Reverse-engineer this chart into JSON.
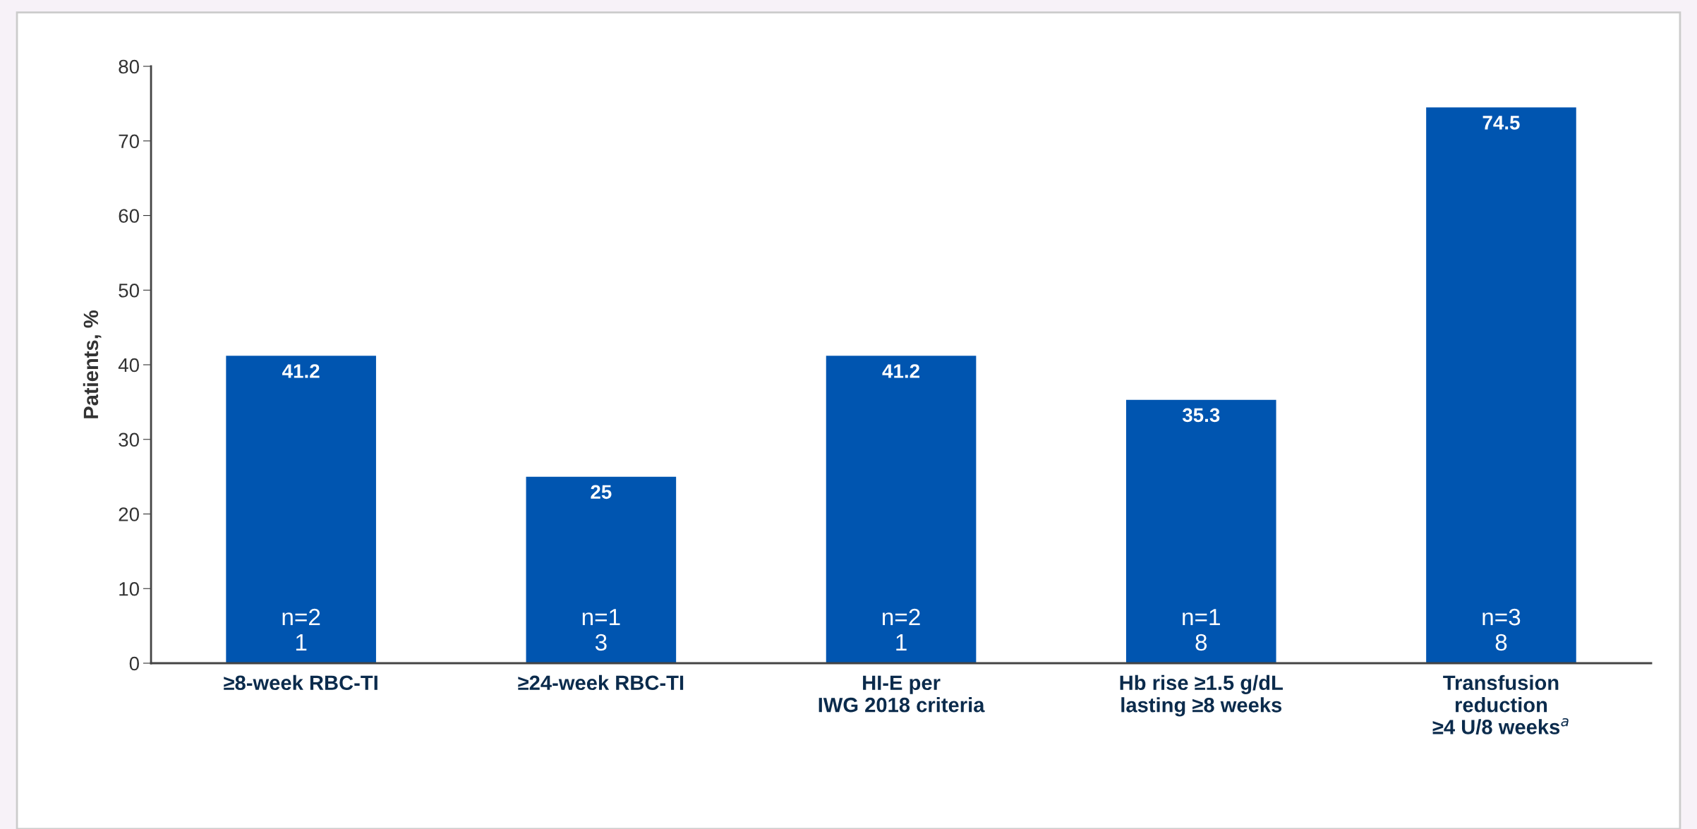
{
  "chart_data": {
    "type": "bar",
    "ylabel": "Patients, %",
    "categories": [
      "≥8-week RBC-TI",
      "≥24-week RBC-TI",
      "HI-E per\nIWG 2018 criteria",
      "Hb rise ≥1.5 g/dL\nlasting ≥8 weeks",
      "Transfusion\nreduction\n≥4 U/8 weeks$^{a}$"
    ],
    "values": [
      41.2,
      25,
      41.2,
      35.3,
      74.5
    ],
    "color": "#0055b0",
    "data_labels": true,
    "ylim": [
      0,
      80
    ],
    "yticks": [
      0,
      10,
      20,
      30,
      40,
      50,
      60,
      70,
      80
    ],
    "grid": false,
    "legend": false,
    "annotations": [
      "n=2\n1",
      "n=1\n3",
      "n=2\n1",
      "n=1\n8",
      "n=3\n8"
    ]
  }
}
